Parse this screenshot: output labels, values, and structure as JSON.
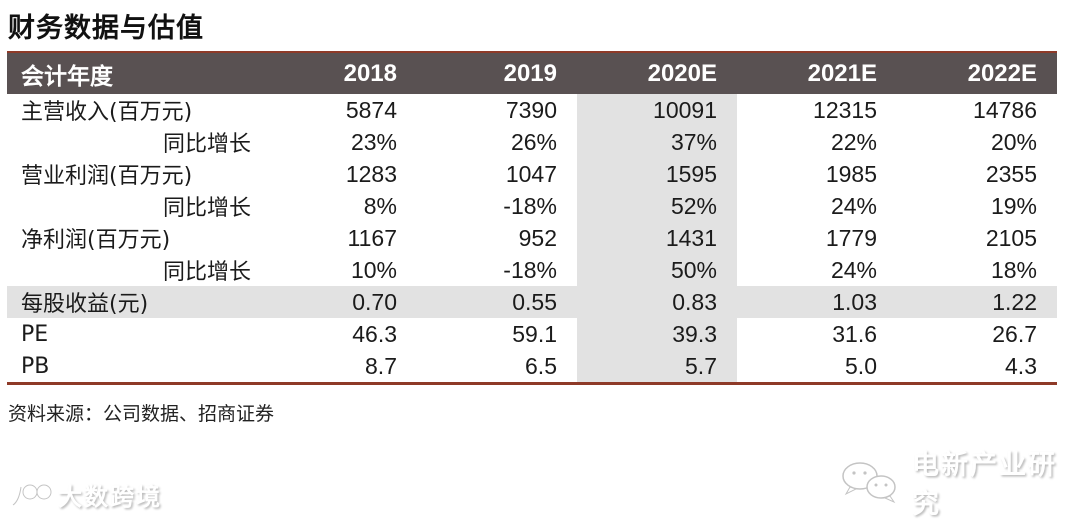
{
  "title": "财务数据与估值",
  "source_note": "资料来源：公司数据、招商证券",
  "colors": {
    "header_bg": "#595152",
    "header_text": "#ffffff",
    "accent_rule": "#8e3a28",
    "highlight_gray": "#e2e2e2",
    "body_text": "#1b1b1b"
  },
  "watermarks": {
    "bottom_left_label": "大数跨境",
    "bottom_right_label": "电新产业研究"
  },
  "chart_data": {
    "type": "table",
    "title": "财务数据与估值",
    "columns": [
      "会计年度",
      "2018",
      "2019",
      "2020E",
      "2021E",
      "2022E"
    ],
    "highlighted_column": "2020E",
    "highlighted_row": "每股收益(元)",
    "rows": [
      {
        "label": "主营收入(百万元)",
        "indent": false,
        "highlight_row": false,
        "values": [
          "5874",
          "7390",
          "10091",
          "12315",
          "14786"
        ]
      },
      {
        "label": "同比增长",
        "indent": true,
        "highlight_row": false,
        "values": [
          "23%",
          "26%",
          "37%",
          "22%",
          "20%"
        ]
      },
      {
        "label": "营业利润(百万元)",
        "indent": false,
        "highlight_row": false,
        "values": [
          "1283",
          "1047",
          "1595",
          "1985",
          "2355"
        ]
      },
      {
        "label": "同比增长",
        "indent": true,
        "highlight_row": false,
        "values": [
          "8%",
          "-18%",
          "52%",
          "24%",
          "19%"
        ]
      },
      {
        "label": "净利润(百万元)",
        "indent": false,
        "highlight_row": false,
        "values": [
          "1167",
          "952",
          "1431",
          "1779",
          "2105"
        ]
      },
      {
        "label": "同比增长",
        "indent": true,
        "highlight_row": false,
        "values": [
          "10%",
          "-18%",
          "50%",
          "24%",
          "18%"
        ]
      },
      {
        "label": "每股收益(元)",
        "indent": false,
        "highlight_row": true,
        "values": [
          "0.70",
          "0.55",
          "0.83",
          "1.03",
          "1.22"
        ]
      },
      {
        "label": "PE",
        "indent": false,
        "highlight_row": false,
        "values": [
          "46.3",
          "59.1",
          "39.3",
          "31.6",
          "26.7"
        ]
      },
      {
        "label": "PB",
        "indent": false,
        "highlight_row": false,
        "values": [
          "8.7",
          "6.5",
          "5.7",
          "5.0",
          "4.3"
        ]
      }
    ],
    "notes": "资料来源：公司数据、招商证券"
  }
}
